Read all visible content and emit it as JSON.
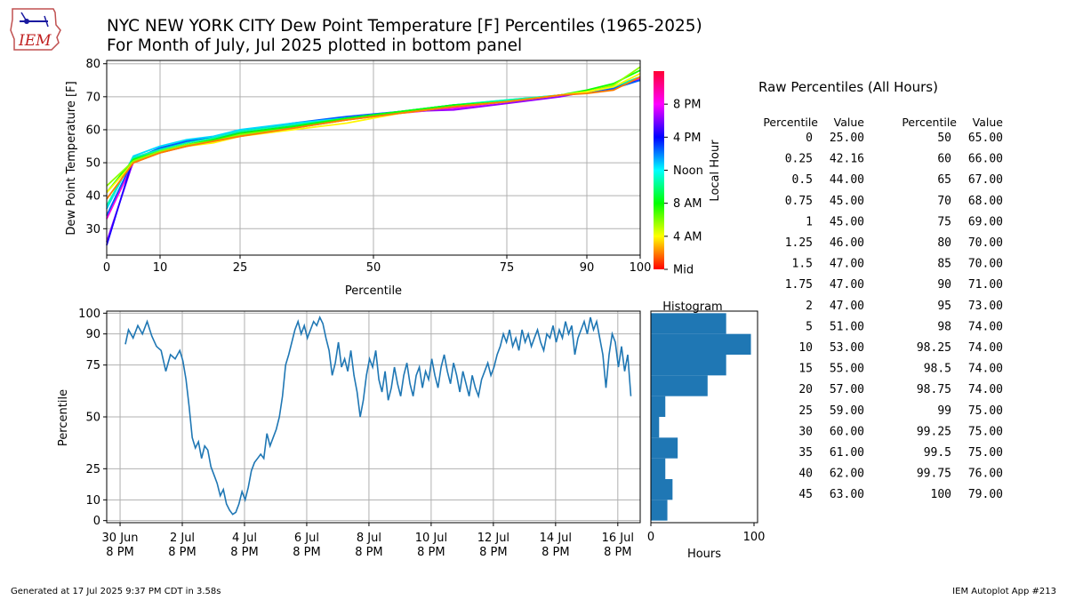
{
  "title_line1": "NYC NEW YORK CITY Dew Point Temperature [F] Percentiles (1965-2025)",
  "title_line2": "For Month of July, Jul 2025 plotted in bottom panel",
  "logo_text": "IEM",
  "footer_left": "Generated at 17 Jul 2025 9:37 PM CDT in 3.58s",
  "footer_right": "IEM Autoplot App #213",
  "colors": {
    "line": "#1f77b4",
    "bar": "#1f77b4",
    "grid": "#b0b0b0"
  },
  "chart_data": [
    {
      "type": "line",
      "id": "percentile_curves",
      "xlabel": "Percentile",
      "ylabel": "Dew Point Temperature [F]",
      "xlim": [
        0,
        100
      ],
      "ylim": [
        22,
        81
      ],
      "xticks": [
        0,
        10,
        25,
        50,
        75,
        90,
        100
      ],
      "yticks": [
        30,
        40,
        50,
        60,
        70,
        80
      ],
      "grid": true,
      "colorbar": {
        "label": "Local Hour",
        "colormap": "hsv",
        "ticks": [
          {
            "hour": 0,
            "label": "Mid"
          },
          {
            "hour": 4,
            "label": "4 AM"
          },
          {
            "hour": 8,
            "label": "8 AM"
          },
          {
            "hour": 12,
            "label": "Noon"
          },
          {
            "hour": 16,
            "label": "4 PM"
          },
          {
            "hour": 20,
            "label": "8 PM"
          }
        ]
      },
      "x": [
        0,
        5,
        10,
        15,
        20,
        25,
        35,
        45,
        55,
        65,
        75,
        85,
        90,
        95,
        100
      ],
      "series": [
        {
          "hour": 0,
          "values": [
            34,
            50,
            53.5,
            55.5,
            57,
            58.5,
            61,
            63,
            65.5,
            67,
            68.5,
            70.5,
            71.5,
            73,
            76
          ]
        },
        {
          "hour": 3,
          "values": [
            33,
            50,
            53,
            55,
            56.5,
            58,
            60.5,
            63,
            65,
            66.5,
            68.5,
            70.5,
            71.5,
            72.5,
            75.5
          ]
        },
        {
          "hour": 5,
          "values": [
            26,
            50.5,
            53,
            55,
            56.5,
            58,
            61,
            63.5,
            65.5,
            66,
            68,
            70,
            71.5,
            72.5,
            76
          ]
        },
        {
          "hour": 7,
          "values": [
            25,
            51.5,
            54,
            56.5,
            57.5,
            59,
            61.5,
            63.5,
            65.5,
            67,
            68.5,
            70.5,
            71.5,
            73,
            75
          ]
        },
        {
          "hour": 9,
          "values": [
            34,
            51,
            54.5,
            56.5,
            57.5,
            59.5,
            62,
            64,
            65.5,
            67.5,
            68.5,
            70.5,
            71.5,
            72.5,
            75
          ]
        },
        {
          "hour": 11,
          "values": [
            36,
            52,
            55,
            57,
            58,
            60,
            62,
            63.5,
            65.5,
            67.5,
            69,
            70.5,
            71.5,
            73,
            76
          ]
        },
        {
          "hour": 13,
          "values": [
            37,
            51.5,
            54,
            56,
            57.5,
            59.5,
            61.5,
            63.5,
            65.5,
            67.5,
            69,
            70.5,
            71.5,
            73,
            76
          ]
        },
        {
          "hour": 16,
          "values": [
            41,
            51,
            53.5,
            55.5,
            57,
            59,
            61,
            63.5,
            65.5,
            67.5,
            68.5,
            70.5,
            72,
            74,
            78
          ]
        },
        {
          "hour": 18,
          "values": [
            43,
            50.5,
            53.5,
            55.5,
            56.5,
            58.5,
            60.5,
            63,
            65,
            67,
            68.5,
            70.5,
            71.5,
            73.5,
            79
          ]
        },
        {
          "hour": 20,
          "values": [
            41,
            50,
            53,
            55,
            56,
            58,
            60,
            62,
            65,
            67,
            68.5,
            70.5,
            71.5,
            73,
            77
          ]
        },
        {
          "hour": 22,
          "values": [
            39,
            50,
            53,
            55,
            56.5,
            58,
            60.5,
            63,
            65,
            67,
            68.5,
            70.5,
            71,
            72,
            76
          ]
        }
      ]
    },
    {
      "type": "line",
      "id": "observed_percentile_timeseries",
      "xlabel": "",
      "ylabel": "Percentile",
      "ylim": [
        -1,
        101
      ],
      "yticks": [
        0,
        10,
        25,
        50,
        75,
        90,
        100
      ],
      "xlim_days_start": "30 Jun 2025",
      "xticks": [
        {
          "day": 0.83,
          "label": [
            "30 Jun",
            "8 PM"
          ]
        },
        {
          "day": 2.83,
          "label": [
            "2 Jul",
            "8 PM"
          ]
        },
        {
          "day": 4.83,
          "label": [
            "4 Jul",
            "8 PM"
          ]
        },
        {
          "day": 6.83,
          "label": [
            "6 Jul",
            "8 PM"
          ]
        },
        {
          "day": 8.83,
          "label": [
            "8 Jul",
            "8 PM"
          ]
        },
        {
          "day": 10.83,
          "label": [
            "10 Jul",
            "8 PM"
          ]
        },
        {
          "day": 12.83,
          "label": [
            "12 Jul",
            "8 PM"
          ]
        },
        {
          "day": 14.83,
          "label": [
            "14 Jul",
            "8 PM"
          ]
        },
        {
          "day": 16.83,
          "label": [
            "16 Jul",
            "8 PM"
          ]
        }
      ],
      "grid": true,
      "points": [
        [
          1.0,
          85
        ],
        [
          1.1,
          92
        ],
        [
          1.25,
          88
        ],
        [
          1.4,
          94
        ],
        [
          1.55,
          90
        ],
        [
          1.7,
          96
        ],
        [
          1.85,
          89
        ],
        [
          2.0,
          84
        ],
        [
          2.15,
          82
        ],
        [
          2.3,
          72
        ],
        [
          2.45,
          80
        ],
        [
          2.6,
          78
        ],
        [
          2.75,
          82
        ],
        [
          2.85,
          77
        ],
        [
          2.95,
          68
        ],
        [
          3.05,
          55
        ],
        [
          3.15,
          40
        ],
        [
          3.25,
          35
        ],
        [
          3.35,
          38
        ],
        [
          3.45,
          30
        ],
        [
          3.55,
          36
        ],
        [
          3.65,
          34
        ],
        [
          3.75,
          26
        ],
        [
          3.85,
          22
        ],
        [
          3.95,
          18
        ],
        [
          4.05,
          12
        ],
        [
          4.15,
          15
        ],
        [
          4.25,
          8
        ],
        [
          4.35,
          5
        ],
        [
          4.45,
          3
        ],
        [
          4.55,
          4
        ],
        [
          4.65,
          8
        ],
        [
          4.75,
          14
        ],
        [
          4.85,
          10
        ],
        [
          4.95,
          16
        ],
        [
          5.05,
          24
        ],
        [
          5.15,
          28
        ],
        [
          5.25,
          30
        ],
        [
          5.35,
          32
        ],
        [
          5.45,
          30
        ],
        [
          5.55,
          42
        ],
        [
          5.65,
          36
        ],
        [
          5.75,
          40
        ],
        [
          5.85,
          44
        ],
        [
          5.95,
          50
        ],
        [
          6.05,
          60
        ],
        [
          6.15,
          75
        ],
        [
          6.25,
          80
        ],
        [
          6.35,
          86
        ],
        [
          6.45,
          92
        ],
        [
          6.55,
          96
        ],
        [
          6.65,
          90
        ],
        [
          6.75,
          94
        ],
        [
          6.85,
          88
        ],
        [
          6.95,
          92
        ],
        [
          7.05,
          96
        ],
        [
          7.15,
          94
        ],
        [
          7.25,
          98
        ],
        [
          7.35,
          95
        ],
        [
          7.45,
          88
        ],
        [
          7.55,
          82
        ],
        [
          7.65,
          70
        ],
        [
          7.75,
          76
        ],
        [
          7.85,
          86
        ],
        [
          7.95,
          74
        ],
        [
          8.05,
          78
        ],
        [
          8.15,
          72
        ],
        [
          8.25,
          82
        ],
        [
          8.35,
          70
        ],
        [
          8.45,
          62
        ],
        [
          8.55,
          50
        ],
        [
          8.65,
          58
        ],
        [
          8.75,
          70
        ],
        [
          8.85,
          78
        ],
        [
          8.95,
          74
        ],
        [
          9.05,
          82
        ],
        [
          9.15,
          68
        ],
        [
          9.25,
          62
        ],
        [
          9.35,
          72
        ],
        [
          9.45,
          58
        ],
        [
          9.55,
          64
        ],
        [
          9.65,
          74
        ],
        [
          9.75,
          66
        ],
        [
          9.85,
          60
        ],
        [
          9.95,
          70
        ],
        [
          10.05,
          76
        ],
        [
          10.15,
          66
        ],
        [
          10.25,
          60
        ],
        [
          10.35,
          70
        ],
        [
          10.45,
          74
        ],
        [
          10.55,
          64
        ],
        [
          10.65,
          72
        ],
        [
          10.75,
          68
        ],
        [
          10.85,
          78
        ],
        [
          10.95,
          70
        ],
        [
          11.05,
          64
        ],
        [
          11.15,
          74
        ],
        [
          11.25,
          80
        ],
        [
          11.35,
          72
        ],
        [
          11.45,
          66
        ],
        [
          11.55,
          76
        ],
        [
          11.65,
          70
        ],
        [
          11.75,
          62
        ],
        [
          11.85,
          72
        ],
        [
          11.95,
          66
        ],
        [
          12.05,
          60
        ],
        [
          12.15,
          70
        ],
        [
          12.25,
          64
        ],
        [
          12.35,
          60
        ],
        [
          12.45,
          68
        ],
        [
          12.55,
          72
        ],
        [
          12.65,
          76
        ],
        [
          12.75,
          70
        ],
        [
          12.85,
          74
        ],
        [
          12.95,
          80
        ],
        [
          13.05,
          84
        ],
        [
          13.15,
          90
        ],
        [
          13.25,
          86
        ],
        [
          13.35,
          92
        ],
        [
          13.45,
          84
        ],
        [
          13.55,
          88
        ],
        [
          13.65,
          82
        ],
        [
          13.75,
          92
        ],
        [
          13.85,
          86
        ],
        [
          13.95,
          90
        ],
        [
          14.05,
          84
        ],
        [
          14.15,
          88
        ],
        [
          14.25,
          92
        ],
        [
          14.35,
          86
        ],
        [
          14.45,
          82
        ],
        [
          14.55,
          90
        ],
        [
          14.65,
          88
        ],
        [
          14.75,
          94
        ],
        [
          14.85,
          86
        ],
        [
          14.95,
          92
        ],
        [
          15.05,
          88
        ],
        [
          15.15,
          96
        ],
        [
          15.25,
          90
        ],
        [
          15.35,
          94
        ],
        [
          15.45,
          80
        ],
        [
          15.55,
          88
        ],
        [
          15.65,
          92
        ],
        [
          15.75,
          96
        ],
        [
          15.85,
          90
        ],
        [
          15.95,
          98
        ],
        [
          16.05,
          92
        ],
        [
          16.15,
          96
        ],
        [
          16.25,
          88
        ],
        [
          16.35,
          80
        ],
        [
          16.45,
          64
        ],
        [
          16.55,
          80
        ],
        [
          16.65,
          90
        ],
        [
          16.75,
          86
        ],
        [
          16.85,
          74
        ],
        [
          16.95,
          84
        ],
        [
          17.05,
          72
        ],
        [
          17.15,
          80
        ],
        [
          17.25,
          60
        ]
      ]
    },
    {
      "type": "bar",
      "orientation": "horizontal",
      "id": "histogram",
      "title": "Histogram",
      "xlabel": "Hours",
      "xlim": [
        0,
        100
      ],
      "xticks": [
        0,
        100
      ],
      "bin_width": 10,
      "bins": [
        0,
        10,
        20,
        30,
        40,
        50,
        60,
        70,
        80,
        90
      ],
      "values": [
        16,
        21,
        14,
        26,
        8,
        14,
        55,
        73,
        97,
        73
      ]
    }
  ],
  "raw_percentiles": {
    "title": "Raw Percentiles (All Hours)",
    "header": [
      "Percentile",
      "Value",
      "Percentile",
      "Value"
    ],
    "left": [
      [
        "0",
        "25.00"
      ],
      [
        "0.25",
        "42.16"
      ],
      [
        "0.5",
        "44.00"
      ],
      [
        "0.75",
        "45.00"
      ],
      [
        "1",
        "45.00"
      ],
      [
        "1.25",
        "46.00"
      ],
      [
        "1.5",
        "47.00"
      ],
      [
        "1.75",
        "47.00"
      ],
      [
        "2",
        "47.00"
      ],
      [
        "5",
        "51.00"
      ],
      [
        "10",
        "53.00"
      ],
      [
        "15",
        "55.00"
      ],
      [
        "20",
        "57.00"
      ],
      [
        "25",
        "59.00"
      ],
      [
        "30",
        "60.00"
      ],
      [
        "35",
        "61.00"
      ],
      [
        "40",
        "62.00"
      ],
      [
        "45",
        "63.00"
      ]
    ],
    "right": [
      [
        "50",
        "65.00"
      ],
      [
        "60",
        "66.00"
      ],
      [
        "65",
        "67.00"
      ],
      [
        "70",
        "68.00"
      ],
      [
        "75",
        "69.00"
      ],
      [
        "80",
        "70.00"
      ],
      [
        "85",
        "70.00"
      ],
      [
        "90",
        "71.00"
      ],
      [
        "95",
        "73.00"
      ],
      [
        "98",
        "74.00"
      ],
      [
        "98.25",
        "74.00"
      ],
      [
        "98.5",
        "74.00"
      ],
      [
        "98.75",
        "74.00"
      ],
      [
        "99",
        "75.00"
      ],
      [
        "99.25",
        "75.00"
      ],
      [
        "99.5",
        "75.00"
      ],
      [
        "99.75",
        "76.00"
      ],
      [
        "100",
        "79.00"
      ]
    ]
  }
}
